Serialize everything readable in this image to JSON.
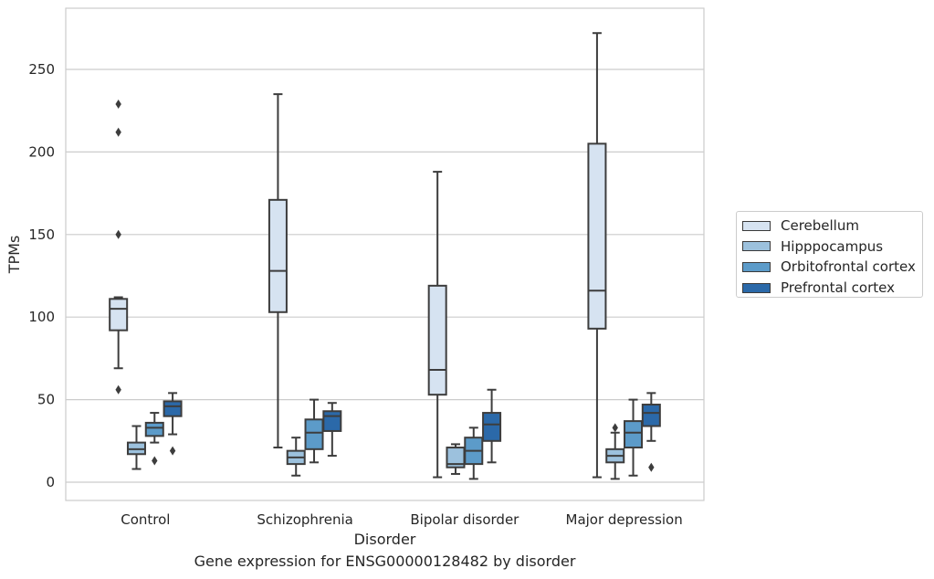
{
  "chart_data": {
    "type": "box",
    "xlabel": "Disorder",
    "ylabel": "TPMs",
    "caption": "Gene expression for ENSG00000128482 by disorder",
    "ylim": [
      -11,
      287
    ],
    "yticks": [
      0,
      50,
      100,
      150,
      200,
      250
    ],
    "grid": "horizontal",
    "legend_position": "right",
    "categories": [
      "Control",
      "Schizophrenia",
      "Bipolar disorder",
      "Major depression"
    ],
    "series": [
      {
        "name": "Cerebellum",
        "color": "#d6e3f1",
        "boxes": [
          {
            "whisker_low": 69,
            "q1": 92,
            "median": 105,
            "q3": 111,
            "whisker_high": 112,
            "outliers": [
              56,
              150,
              212,
              229
            ]
          },
          {
            "whisker_low": 21,
            "q1": 103,
            "median": 128,
            "q3": 171,
            "whisker_high": 235,
            "outliers": []
          },
          {
            "whisker_low": 3,
            "q1": 53,
            "median": 68,
            "q3": 119,
            "whisker_high": 188,
            "outliers": []
          },
          {
            "whisker_low": 3,
            "q1": 93,
            "median": 116,
            "q3": 205,
            "whisker_high": 272,
            "outliers": []
          }
        ]
      },
      {
        "name": "Hipppocampus",
        "color": "#9cc1dd",
        "boxes": [
          {
            "whisker_low": 8,
            "q1": 17,
            "median": 20,
            "q3": 24,
            "whisker_high": 34,
            "outliers": []
          },
          {
            "whisker_low": 4,
            "q1": 11,
            "median": 15,
            "q3": 19,
            "whisker_high": 27,
            "outliers": []
          },
          {
            "whisker_low": 5,
            "q1": 9,
            "median": 11,
            "q3": 21,
            "whisker_high": 23,
            "outliers": []
          },
          {
            "whisker_low": 2,
            "q1": 12,
            "median": 16,
            "q3": 20,
            "whisker_high": 30,
            "outliers": [
              33
            ]
          }
        ]
      },
      {
        "name": "Orbitofrontal cortex",
        "color": "#5c9bc9",
        "boxes": [
          {
            "whisker_low": 24,
            "q1": 28,
            "median": 33,
            "q3": 36,
            "whisker_high": 42,
            "outliers": [
              13
            ]
          },
          {
            "whisker_low": 12,
            "q1": 20,
            "median": 30,
            "q3": 38,
            "whisker_high": 50,
            "outliers": []
          },
          {
            "whisker_low": 2,
            "q1": 11,
            "median": 19,
            "q3": 27,
            "whisker_high": 33,
            "outliers": []
          },
          {
            "whisker_low": 4,
            "q1": 21,
            "median": 30,
            "q3": 37,
            "whisker_high": 50,
            "outliers": []
          }
        ]
      },
      {
        "name": "Prefrontal cortex",
        "color": "#2b69a9",
        "boxes": [
          {
            "whisker_low": 29,
            "q1": 40,
            "median": 46,
            "q3": 49,
            "whisker_high": 54,
            "outliers": [
              19
            ]
          },
          {
            "whisker_low": 16,
            "q1": 31,
            "median": 40,
            "q3": 43,
            "whisker_high": 48,
            "outliers": []
          },
          {
            "whisker_low": 12,
            "q1": 25,
            "median": 35,
            "q3": 42,
            "whisker_high": 56,
            "outliers": []
          },
          {
            "whisker_low": 25,
            "q1": 34,
            "median": 42,
            "q3": 47,
            "whisker_high": 54,
            "outliers": [
              9
            ]
          }
        ]
      }
    ]
  }
}
